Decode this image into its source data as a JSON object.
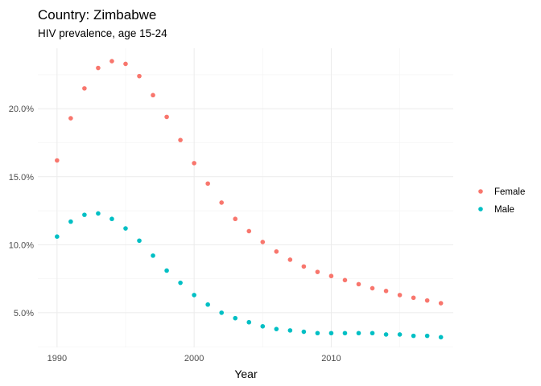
{
  "chart_data": {
    "type": "scatter",
    "title": "Country: Zimbabwe",
    "subtitle": "HIV prevalence, age 15-24",
    "xlabel": "Year",
    "ylabel": "",
    "xlim": [
      1988.6,
      2018.9
    ],
    "ylim": [
      0.0245,
      0.2445
    ],
    "x_ticks": [
      1990,
      2000,
      2010
    ],
    "x_tick_labels": [
      "1990",
      "2000",
      "2010"
    ],
    "y_ticks": [
      0.05,
      0.1,
      0.15,
      0.2
    ],
    "y_tick_labels": [
      "5.0%",
      "10.0%",
      "15.0%",
      "20.0%"
    ],
    "grid": true,
    "legend_position": "right",
    "series": [
      {
        "name": "Female",
        "color": "#F8766D",
        "x": [
          1990,
          1991,
          1992,
          1993,
          1994,
          1995,
          1996,
          1997,
          1998,
          1999,
          2000,
          2001,
          2002,
          2003,
          2004,
          2005,
          2006,
          2007,
          2008,
          2009,
          2010,
          2011,
          2012,
          2013,
          2014,
          2015,
          2016,
          2017,
          2018
        ],
        "values": [
          0.162,
          0.193,
          0.215,
          0.23,
          0.235,
          0.233,
          0.224,
          0.21,
          0.194,
          0.177,
          0.16,
          0.145,
          0.131,
          0.119,
          0.11,
          0.102,
          0.095,
          0.089,
          0.084,
          0.08,
          0.077,
          0.074,
          0.071,
          0.068,
          0.066,
          0.063,
          0.061,
          0.059,
          0.057
        ]
      },
      {
        "name": "Male",
        "color": "#00BFC4",
        "x": [
          1990,
          1991,
          1992,
          1993,
          1994,
          1995,
          1996,
          1997,
          1998,
          1999,
          2000,
          2001,
          2002,
          2003,
          2004,
          2005,
          2006,
          2007,
          2008,
          2009,
          2010,
          2011,
          2012,
          2013,
          2014,
          2015,
          2016,
          2017,
          2018
        ],
        "values": [
          0.106,
          0.117,
          0.122,
          0.123,
          0.119,
          0.112,
          0.103,
          0.092,
          0.081,
          0.072,
          0.063,
          0.056,
          0.05,
          0.046,
          0.043,
          0.04,
          0.038,
          0.037,
          0.036,
          0.035,
          0.035,
          0.035,
          0.035,
          0.035,
          0.034,
          0.034,
          0.033,
          0.033,
          0.032
        ]
      }
    ]
  }
}
